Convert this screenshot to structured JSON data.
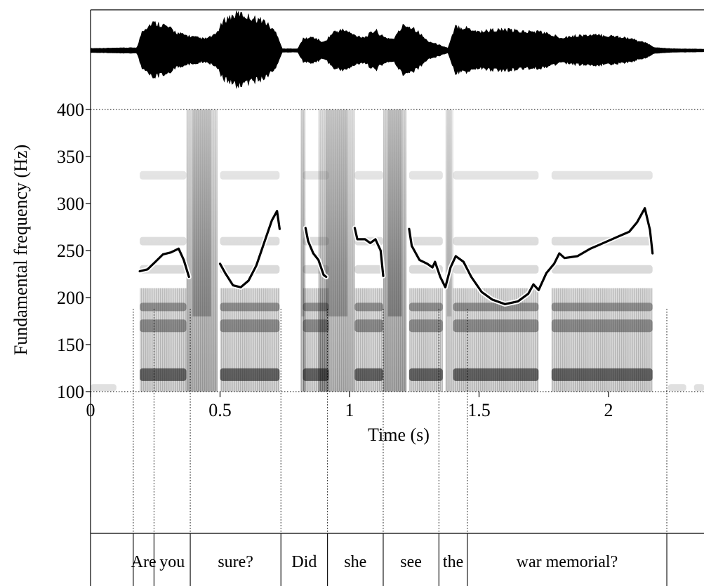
{
  "chart_data": {
    "type": "line",
    "title": "",
    "xlabel": "Time (s)",
    "ylabel": "Fundamental frequency (Hz)",
    "xlim": [
      0,
      2.37
    ],
    "ylim": [
      100,
      400
    ],
    "x_ticks": [
      "0",
      "0.5",
      "1",
      "1.5",
      "2"
    ],
    "y_ticks": [
      "100",
      "150",
      "200",
      "250",
      "300",
      "350",
      "400"
    ],
    "panels": [
      "waveform",
      "spectrogram",
      "f0-contour",
      "word-tier"
    ],
    "series": [
      {
        "segments": [
          [
            [
              0.19,
              228
            ],
            [
              0.22,
              230
            ],
            [
              0.25,
              238
            ],
            [
              0.28,
              246
            ],
            [
              0.31,
              248
            ],
            [
              0.34,
              252
            ],
            [
              0.36,
              240
            ],
            [
              0.38,
              222
            ]
          ],
          [
            [
              0.5,
              236
            ],
            [
              0.52,
              226
            ],
            [
              0.55,
              213
            ],
            [
              0.58,
              211
            ],
            [
              0.61,
              218
            ],
            [
              0.64,
              234
            ],
            [
              0.67,
              258
            ],
            [
              0.7,
              282
            ],
            [
              0.72,
              292
            ],
            [
              0.73,
              273
            ]
          ],
          [
            [
              0.83,
              274
            ],
            [
              0.84,
              260
            ],
            [
              0.86,
              247
            ],
            [
              0.88,
              240
            ],
            [
              0.9,
              224
            ],
            [
              0.91,
              222
            ]
          ],
          [
            [
              1.02,
              274
            ],
            [
              1.03,
              262
            ],
            [
              1.06,
              262
            ],
            [
              1.08,
              258
            ],
            [
              1.1,
              262
            ],
            [
              1.12,
              250
            ],
            [
              1.13,
              223
            ]
          ],
          [
            [
              1.23,
              273
            ],
            [
              1.24,
              255
            ],
            [
              1.27,
              240
            ],
            [
              1.3,
              236
            ],
            [
              1.32,
              232
            ],
            [
              1.33,
              238
            ],
            [
              1.35,
              222
            ],
            [
              1.37,
              211
            ],
            [
              1.39,
              232
            ],
            [
              1.41,
              244
            ],
            [
              1.44,
              238
            ],
            [
              1.47,
              222
            ],
            [
              1.51,
              206
            ],
            [
              1.55,
              198
            ],
            [
              1.6,
              193
            ],
            [
              1.65,
              196
            ],
            [
              1.69,
              204
            ],
            [
              1.71,
              214
            ],
            [
              1.73,
              208
            ],
            [
              1.76,
              226
            ],
            [
              1.79,
              236
            ],
            [
              1.81,
              247
            ],
            [
              1.83,
              242
            ],
            [
              1.88,
              244
            ],
            [
              1.93,
              252
            ],
            [
              1.98,
              258
            ],
            [
              2.03,
              264
            ],
            [
              2.08,
              270
            ],
            [
              2.11,
              280
            ],
            [
              2.14,
              295
            ],
            [
              2.16,
              272
            ],
            [
              2.17,
              247
            ]
          ]
        ]
      }
    ],
    "words": [
      {
        "text": "Are",
        "start": 0.165,
        "end": 0.245
      },
      {
        "text": "you",
        "start": 0.245,
        "end": 0.385
      },
      {
        "text": "sure?",
        "start": 0.385,
        "end": 0.735
      },
      {
        "text": "Did",
        "start": 0.735,
        "end": 0.915
      },
      {
        "text": "she",
        "start": 0.915,
        "end": 1.13
      },
      {
        "text": "see",
        "start": 1.13,
        "end": 1.345
      },
      {
        "text": "the",
        "start": 1.345,
        "end": 1.455
      },
      {
        "text": "war memorial?",
        "start": 1.455,
        "end": 2.225
      }
    ],
    "waveform_envelope": [
      [
        0.0,
        0.04
      ],
      [
        0.18,
        0.06
      ],
      [
        0.2,
        0.55
      ],
      [
        0.24,
        0.75
      ],
      [
        0.28,
        0.7
      ],
      [
        0.34,
        0.45
      ],
      [
        0.4,
        0.35
      ],
      [
        0.44,
        0.3
      ],
      [
        0.48,
        0.4
      ],
      [
        0.52,
        0.85
      ],
      [
        0.57,
        1.0
      ],
      [
        0.62,
        0.9
      ],
      [
        0.67,
        0.8
      ],
      [
        0.72,
        0.45
      ],
      [
        0.74,
        0.03
      ],
      [
        0.8,
        0.03
      ],
      [
        0.82,
        0.3
      ],
      [
        0.86,
        0.35
      ],
      [
        0.9,
        0.2
      ],
      [
        0.94,
        0.5
      ],
      [
        0.98,
        0.55
      ],
      [
        1.02,
        0.4
      ],
      [
        1.06,
        0.35
      ],
      [
        1.1,
        0.55
      ],
      [
        1.13,
        0.35
      ],
      [
        1.17,
        0.3
      ],
      [
        1.21,
        0.7
      ],
      [
        1.25,
        0.6
      ],
      [
        1.3,
        0.25
      ],
      [
        1.34,
        0.15
      ],
      [
        1.38,
        0.05
      ],
      [
        1.41,
        0.65
      ],
      [
        1.46,
        0.6
      ],
      [
        1.5,
        0.5
      ],
      [
        1.55,
        0.55
      ],
      [
        1.6,
        0.55
      ],
      [
        1.68,
        0.5
      ],
      [
        1.74,
        0.5
      ],
      [
        1.78,
        0.4
      ],
      [
        1.82,
        0.35
      ],
      [
        1.9,
        0.4
      ],
      [
        1.98,
        0.4
      ],
      [
        2.06,
        0.35
      ],
      [
        2.14,
        0.2
      ],
      [
        2.18,
        0.06
      ],
      [
        2.25,
        0.03
      ],
      [
        2.37,
        0.02
      ]
    ],
    "grid": false,
    "legend": "none"
  },
  "colors": {
    "line": "#000000",
    "outline": "#ffffff",
    "spectrogram_dark": "#222222",
    "background": "#ffffff"
  }
}
